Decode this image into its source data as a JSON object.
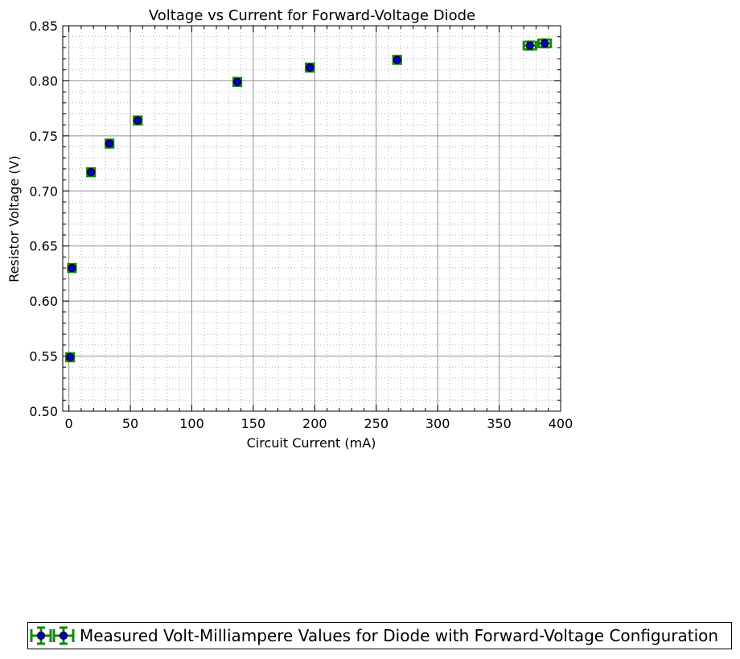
{
  "chart_data": {
    "type": "scatter",
    "title": "Voltage vs Current for Forward-Voltage Diode",
    "xlabel": "Circuit Current (mA)",
    "ylabel": "Resistor Voltage (V)",
    "xlim": [
      -5,
      400
    ],
    "ylim": [
      0.5,
      0.85
    ],
    "xticks": [
      0,
      50,
      100,
      150,
      200,
      250,
      300,
      350,
      400
    ],
    "yticks": [
      0.5,
      0.55,
      0.6,
      0.65,
      0.7,
      0.75,
      0.8,
      0.85
    ],
    "xtick_labels": [
      "0",
      "50",
      "100",
      "150",
      "200",
      "250",
      "300",
      "350",
      "400"
    ],
    "ytick_labels": [
      "0.50",
      "0.55",
      "0.60",
      "0.65",
      "0.70",
      "0.75",
      "0.80",
      "0.85"
    ],
    "grid": true,
    "minor_grid": true,
    "legend_position": "bottom",
    "series": [
      {
        "name": "Measured Volt-Milliampere Values for Diode with Forward-Voltage Configuration",
        "marker_color": "#0000cc",
        "errorbar_color": "#118811",
        "x": [
          1,
          2.5,
          18,
          33,
          56,
          137,
          196,
          267,
          375,
          387
        ],
        "y": [
          0.549,
          0.63,
          0.717,
          0.743,
          0.764,
          0.799,
          0.812,
          0.819,
          0.832,
          0.834
        ],
        "x_err": [
          3,
          3,
          3,
          3,
          3,
          3,
          3,
          3,
          5,
          5
        ],
        "y_err": [
          0.0035,
          0.0035,
          0.0035,
          0.0035,
          0.0035,
          0.0035,
          0.0035,
          0.0035,
          0.0035,
          0.0035
        ]
      }
    ]
  }
}
